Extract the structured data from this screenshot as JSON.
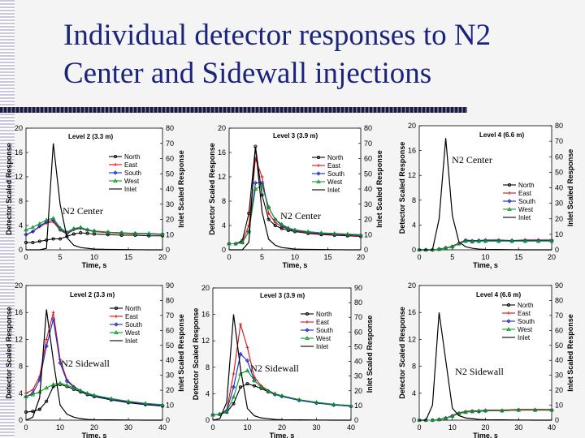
{
  "title_line1": "Individual detector responses to N2",
  "title_line2": "Center and Sidewall injections",
  "colors": {
    "North": "#000000",
    "East": "#d61010",
    "South": "#1a28c8",
    "West": "#0f9a2a",
    "Inlet": "#000000",
    "title": "#1a237e"
  },
  "chart_data": [
    {
      "type": "line",
      "title": "Level 2 (3.3 m)",
      "annotation": "N2 Center",
      "xlabel": "Time, s",
      "ylabel": "Detector Scaled Response",
      "y2label": "Inlet Scaled Response",
      "xlim": [
        0,
        20
      ],
      "xticks": [
        "0",
        "5",
        "10",
        "15",
        "20"
      ],
      "ylim": [
        0,
        20
      ],
      "yticks": [
        "0",
        "4",
        "8",
        "12",
        "16",
        "20"
      ],
      "y2lim": [
        0,
        80
      ],
      "y2ticks": [
        "0",
        "10",
        "20",
        "30",
        "40",
        "50",
        "60",
        "70",
        "80"
      ],
      "legend": [
        "North",
        "East",
        "South",
        "West",
        "Inlet"
      ],
      "x": [
        0,
        1,
        2,
        3,
        4,
        5,
        6,
        7,
        8,
        9,
        10,
        12,
        14,
        16,
        18,
        20
      ],
      "series": [
        {
          "name": "North",
          "values": [
            1.2,
            1.2,
            1.4,
            1.6,
            1.8,
            1.8,
            2.2,
            2.6,
            2.8,
            2.7,
            2.6,
            2.5,
            2.4,
            2.4,
            2.3,
            2.3
          ]
        },
        {
          "name": "East",
          "values": [
            2.5,
            3,
            3.8,
            4.4,
            4.6,
            3.2,
            2.6,
            3.3,
            3.5,
            3.2,
            3,
            2.8,
            2.7,
            2.6,
            2.6,
            2.5
          ]
        },
        {
          "name": "South",
          "values": [
            2.5,
            3,
            3.9,
            4.6,
            4.9,
            3.4,
            2.7,
            3.4,
            3.6,
            3.3,
            3.1,
            2.9,
            2.8,
            2.7,
            2.6,
            2.6
          ]
        },
        {
          "name": "West",
          "values": [
            3.3,
            3.7,
            4.3,
            4.9,
            5.2,
            3.6,
            2.9,
            3.5,
            3.7,
            3.3,
            3.1,
            2.9,
            2.8,
            2.7,
            2.7,
            2.6
          ]
        },
        {
          "name": "Inlet",
          "values": [
            0,
            0,
            0,
            1,
            70,
            30,
            8,
            3,
            1.5,
            1,
            0.5,
            0.3,
            0.2,
            0.1,
            0,
            0
          ],
          "axis": "right"
        }
      ]
    },
    {
      "type": "line",
      "title": "Level 3 (3.9 m)",
      "annotation": "N2 Center",
      "xlabel": "Time, s",
      "ylabel": "Detector Scaled Response",
      "y2label": "Inlet Scaled Response",
      "xlim": [
        0,
        20
      ],
      "xticks": [
        "0",
        "5",
        "10",
        "15",
        "20"
      ],
      "ylim": [
        0,
        20
      ],
      "yticks": [
        "0",
        "4",
        "8",
        "12",
        "16",
        "20"
      ],
      "y2lim": [
        0,
        80
      ],
      "y2ticks": [
        "0",
        "10",
        "20",
        "30",
        "40",
        "50",
        "60",
        "70",
        "80"
      ],
      "legend": [
        "North",
        "East",
        "South",
        "West",
        "Inlet"
      ],
      "x": [
        0,
        1,
        2,
        3,
        4,
        5,
        6,
        7,
        8,
        9,
        10,
        12,
        14,
        16,
        18,
        20
      ],
      "series": [
        {
          "name": "North",
          "values": [
            1,
            1,
            1.5,
            6,
            17,
            9,
            5,
            4,
            3.5,
            3.2,
            3,
            2.7,
            2.5,
            2.4,
            2.3,
            2.2
          ]
        },
        {
          "name": "East",
          "values": [
            1,
            1,
            1.3,
            4,
            15,
            12,
            6,
            4.5,
            3.8,
            3.4,
            3.1,
            2.8,
            2.6,
            2.5,
            2.4,
            2.3
          ]
        },
        {
          "name": "South",
          "values": [
            1,
            1,
            1.2,
            3,
            11,
            11,
            7,
            5,
            4,
            3.5,
            3.2,
            2.9,
            2.7,
            2.6,
            2.5,
            2.4
          ]
        },
        {
          "name": "West",
          "values": [
            1,
            1,
            1.2,
            3,
            10,
            10.5,
            7,
            5,
            4.2,
            3.6,
            3.3,
            3,
            2.8,
            2.7,
            2.6,
            2.5
          ]
        },
        {
          "name": "Inlet",
          "values": [
            0,
            0,
            0,
            5,
            68,
            25,
            7,
            3,
            1.5,
            1,
            0.5,
            0.3,
            0.2,
            0.1,
            0,
            0
          ],
          "axis": "right"
        }
      ]
    },
    {
      "type": "line",
      "title": "Level 4 (6.6 m)",
      "annotation": "N2 Center",
      "xlabel": "Time, s",
      "ylabel": "Detector Scaled Response",
      "y2label": "Inlet Scaled Response",
      "xlim": [
        0,
        20
      ],
      "xticks": [
        "0",
        "5",
        "10",
        "15",
        "20"
      ],
      "ylim": [
        0,
        20
      ],
      "yticks": [
        "0",
        "4",
        "8",
        "12",
        "16",
        "20"
      ],
      "y2lim": [
        0,
        80
      ],
      "y2ticks": [
        "0",
        "10",
        "20",
        "30",
        "40",
        "50",
        "60",
        "70",
        "80"
      ],
      "legend": [
        "North",
        "East",
        "South",
        "West",
        "Inlet"
      ],
      "x": [
        0,
        1,
        2,
        3,
        4,
        5,
        6,
        7,
        8,
        9,
        10,
        12,
        14,
        16,
        18,
        20
      ],
      "series": [
        {
          "name": "North",
          "values": [
            0,
            0,
            0,
            0.1,
            0.3,
            0.5,
            1,
            1.5,
            1.4,
            1.4,
            1.5,
            1.5,
            1.4,
            1.5,
            1.5,
            1.5
          ]
        },
        {
          "name": "East",
          "values": [
            0,
            0,
            0,
            0.1,
            0.3,
            0.6,
            1.1,
            1.6,
            1.5,
            1.5,
            1.6,
            1.6,
            1.5,
            1.6,
            1.6,
            1.6
          ]
        },
        {
          "name": "South",
          "values": [
            0,
            0,
            0,
            0.1,
            0.3,
            0.5,
            1,
            1.5,
            1.4,
            1.5,
            1.5,
            1.5,
            1.5,
            1.5,
            1.5,
            1.5
          ]
        },
        {
          "name": "West",
          "values": [
            0,
            0,
            0,
            0.1,
            0.3,
            0.5,
            1,
            1.4,
            1.3,
            1.4,
            1.4,
            1.4,
            1.4,
            1.4,
            1.4,
            1.4
          ]
        },
        {
          "name": "Inlet",
          "values": [
            0,
            0,
            0,
            20,
            72,
            22,
            5,
            2,
            1,
            0.5,
            0.3,
            0.2,
            0.1,
            0,
            0,
            0
          ],
          "axis": "right"
        }
      ]
    },
    {
      "type": "line",
      "title": "Level 2 (3.3 m)",
      "annotation": "N2 Sidewall",
      "xlabel": "Time, s",
      "ylabel": "Detector Scaled Response",
      "y2label": "Inlet Scaled Response",
      "xlim": [
        0,
        40
      ],
      "xticks": [
        "0",
        "10",
        "20",
        "30",
        "40"
      ],
      "ylim": [
        0,
        20
      ],
      "yticks": [
        "0",
        "4",
        "8",
        "12",
        "16",
        "20"
      ],
      "y2lim": [
        0,
        90
      ],
      "y2ticks": [
        "0",
        "10",
        "20",
        "30",
        "40",
        "50",
        "60",
        "70",
        "80",
        "90"
      ],
      "legend": [
        "North",
        "East",
        "South",
        "West",
        "Inlet"
      ],
      "x": [
        0,
        2,
        4,
        6,
        8,
        10,
        12,
        14,
        16,
        18,
        20,
        25,
        30,
        35,
        40
      ],
      "series": [
        {
          "name": "North",
          "values": [
            1.2,
            1.3,
            1.6,
            2.8,
            5,
            5.3,
            5,
            4.6,
            4.2,
            3.8,
            3.5,
            3,
            2.6,
            2.3,
            2.1
          ]
        },
        {
          "name": "East",
          "values": [
            4,
            4.5,
            6.5,
            12,
            16,
            9,
            6,
            5,
            4.4,
            4,
            3.7,
            3.2,
            2.8,
            2.5,
            2.3
          ]
        },
        {
          "name": "South",
          "values": [
            3.5,
            4,
            6,
            11,
            15,
            8.5,
            5.8,
            4.9,
            4.3,
            3.9,
            3.6,
            3.1,
            2.7,
            2.4,
            2.2
          ]
        },
        {
          "name": "West",
          "values": [
            3.5,
            3.8,
            4.2,
            4.8,
            5.3,
            5.5,
            5.2,
            4.8,
            4.4,
            4,
            3.7,
            3.2,
            2.8,
            2.5,
            2.3
          ]
        },
        {
          "name": "Inlet",
          "values": [
            0,
            2,
            15,
            74,
            40,
            10,
            4,
            2,
            1,
            0.5,
            0.3,
            0.2,
            0.1,
            0,
            0
          ],
          "axis": "right"
        }
      ]
    },
    {
      "type": "line",
      "title": "Level 3 (3.9 m)",
      "annotation": "N2 Sidewall",
      "xlabel": "Time, s",
      "ylabel": "Detector Scaled Response",
      "y2label": "Inlet Scaled Response",
      "xlim": [
        0,
        40
      ],
      "xticks": [
        "0",
        "10",
        "20",
        "30",
        "40"
      ],
      "ylim": [
        0,
        20
      ],
      "yticks": [
        "0",
        "4",
        "8",
        "12",
        "16",
        "20"
      ],
      "y2lim": [
        0,
        90
      ],
      "y2ticks": [
        "0",
        "10",
        "20",
        "30",
        "40",
        "50",
        "60",
        "70",
        "80",
        "90"
      ],
      "legend": [
        "North",
        "East",
        "South",
        "West",
        "Inlet"
      ],
      "x": [
        0,
        2,
        4,
        6,
        8,
        10,
        12,
        14,
        16,
        18,
        20,
        25,
        30,
        35,
        40
      ],
      "series": [
        {
          "name": "North",
          "values": [
            0.8,
            0.9,
            1.2,
            2.5,
            5,
            5.5,
            5.2,
            4.8,
            4.3,
            3.9,
            3.6,
            3,
            2.6,
            2.3,
            2.1
          ]
        },
        {
          "name": "East",
          "values": [
            0.8,
            0.9,
            1.5,
            7,
            14.5,
            11,
            6.5,
            5.2,
            4.5,
            4,
            3.7,
            3.1,
            2.7,
            2.4,
            2.2
          ]
        },
        {
          "name": "South",
          "values": [
            0.8,
            0.9,
            1.4,
            5,
            10,
            9,
            6,
            5,
            4.4,
            3.9,
            3.6,
            3,
            2.6,
            2.3,
            2.1
          ]
        },
        {
          "name": "West",
          "values": [
            0.8,
            0.9,
            1.3,
            3.5,
            7,
            7.5,
            6,
            5,
            4.4,
            4,
            3.7,
            3.1,
            2.7,
            2.4,
            2.2
          ]
        },
        {
          "name": "Inlet",
          "values": [
            0,
            1,
            12,
            72,
            35,
            8,
            3,
            1.5,
            1,
            0.5,
            0.3,
            0.2,
            0.1,
            0,
            0
          ],
          "axis": "right"
        }
      ]
    },
    {
      "type": "line",
      "title": "Level 4 (6.6 m)",
      "annotation": "N2 Sidewall",
      "xlabel": "Time, s",
      "ylabel": "Detector Scaled Response",
      "y2label": "Inlet Scaled Response",
      "xlim": [
        0,
        40
      ],
      "xticks": [
        "0",
        "10",
        "20",
        "30",
        "40"
      ],
      "ylim": [
        0,
        20
      ],
      "yticks": [
        "0",
        "4",
        "8",
        "12",
        "16",
        "20"
      ],
      "y2lim": [
        0,
        90
      ],
      "y2ticks": [
        "0",
        "10",
        "20",
        "30",
        "40",
        "50",
        "60",
        "70",
        "80",
        "90"
      ],
      "legend": [
        "North",
        "East",
        "South",
        "West",
        "Inlet"
      ],
      "x": [
        0,
        2,
        4,
        6,
        8,
        10,
        12,
        14,
        16,
        18,
        20,
        25,
        30,
        35,
        40
      ],
      "series": [
        {
          "name": "North",
          "values": [
            0,
            0,
            0,
            0.1,
            0.3,
            0.6,
            1,
            1.2,
            1.3,
            1.3,
            1.4,
            1.4,
            1.5,
            1.5,
            1.5
          ]
        },
        {
          "name": "East",
          "values": [
            0,
            0,
            0,
            0.1,
            0.3,
            0.7,
            1.1,
            1.3,
            1.4,
            1.4,
            1.5,
            1.5,
            1.6,
            1.6,
            1.6
          ]
        },
        {
          "name": "South",
          "values": [
            0,
            0,
            0,
            0.1,
            0.3,
            0.6,
            1,
            1.2,
            1.3,
            1.3,
            1.4,
            1.4,
            1.5,
            1.5,
            1.5
          ]
        },
        {
          "name": "West",
          "values": [
            0,
            0,
            0,
            0.1,
            0.3,
            0.6,
            1,
            1.2,
            1.3,
            1.4,
            1.4,
            1.4,
            1.5,
            1.5,
            1.5
          ]
        },
        {
          "name": "Inlet",
          "values": [
            0,
            0,
            10,
            72,
            40,
            8,
            3,
            1.5,
            1,
            0.5,
            0.3,
            0.2,
            0.1,
            0,
            0
          ],
          "axis": "right"
        }
      ]
    }
  ]
}
